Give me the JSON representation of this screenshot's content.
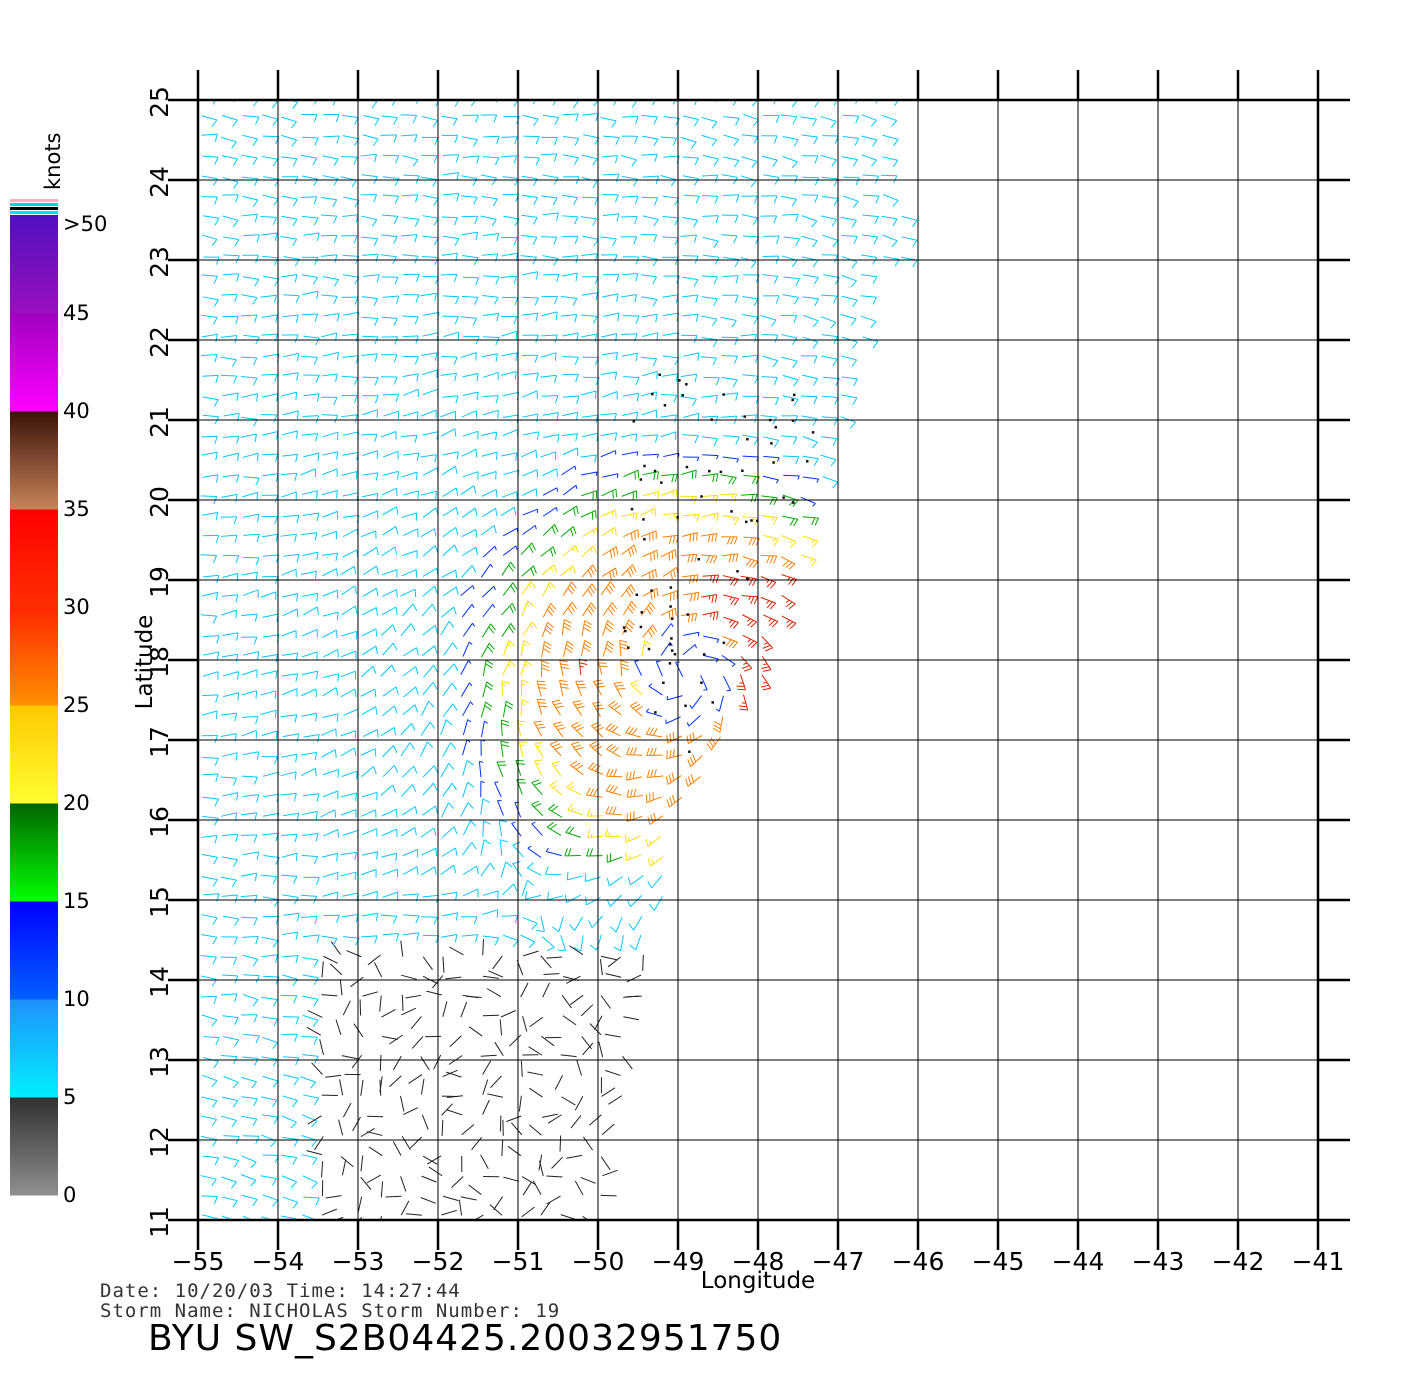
{
  "map": {
    "x_axis_label": "Longitude",
    "y_axis_label": "Latitude",
    "lon_ticks": [
      "−55",
      "−54",
      "−53",
      "−52",
      "−51",
      "−50",
      "−49",
      "−48",
      "−47",
      "−46",
      "−45",
      "−44",
      "−43",
      "−42",
      "−41"
    ],
    "lat_ticks": [
      "11",
      "12",
      "13",
      "14",
      "15",
      "16",
      "17",
      "18",
      "19",
      "20",
      "21",
      "22",
      "23",
      "24",
      "25"
    ],
    "lon_range": [
      -55,
      -41
    ],
    "lat_range": [
      11,
      25
    ],
    "grid": true,
    "storm_center": {
      "lon": -48.9,
      "lat": 17.8
    },
    "swath_edge_note": "data present west of satellite swath edge"
  },
  "colorbar": {
    "units": "knots",
    "labels": [
      ">50",
      "45",
      "40",
      "35",
      "30",
      "25",
      "20",
      "15",
      "10",
      "5",
      "0"
    ],
    "bands": [
      {
        "from": 0,
        "to": 5,
        "top": "#303030",
        "bottom": "#909090"
      },
      {
        "from": 5,
        "to": 10,
        "top": "#1e90ff",
        "bottom": "#00f0ff"
      },
      {
        "from": 10,
        "to": 15,
        "top": "#0000ff",
        "bottom": "#0060ff"
      },
      {
        "from": 15,
        "to": 20,
        "top": "#006400",
        "bottom": "#00ff00"
      },
      {
        "from": 20,
        "to": 25,
        "top": "#ffc800",
        "bottom": "#ffff30"
      },
      {
        "from": 25,
        "to": 30,
        "top": "#ff2800",
        "bottom": "#ff9000"
      },
      {
        "from": 30,
        "to": 35,
        "top": "#ff0000",
        "bottom": "#ff3000"
      },
      {
        "from": 35,
        "to": 40,
        "top": "#3a1208",
        "bottom": "#c8845a"
      },
      {
        "from": 40,
        "to": 45,
        "top": "#a000c0",
        "bottom": "#ff00ff"
      },
      {
        "from": 45,
        "to": 50,
        "top": "#5010c0",
        "bottom": "#9a10c0"
      }
    ]
  },
  "info": {
    "date_line": "Date: 10/20/03   Time: 14:27:44",
    "storm_line": "Storm Name: NICHOLAS   Storm Number: 19",
    "title": "BYU SW_S2B04425.20032951750"
  }
}
